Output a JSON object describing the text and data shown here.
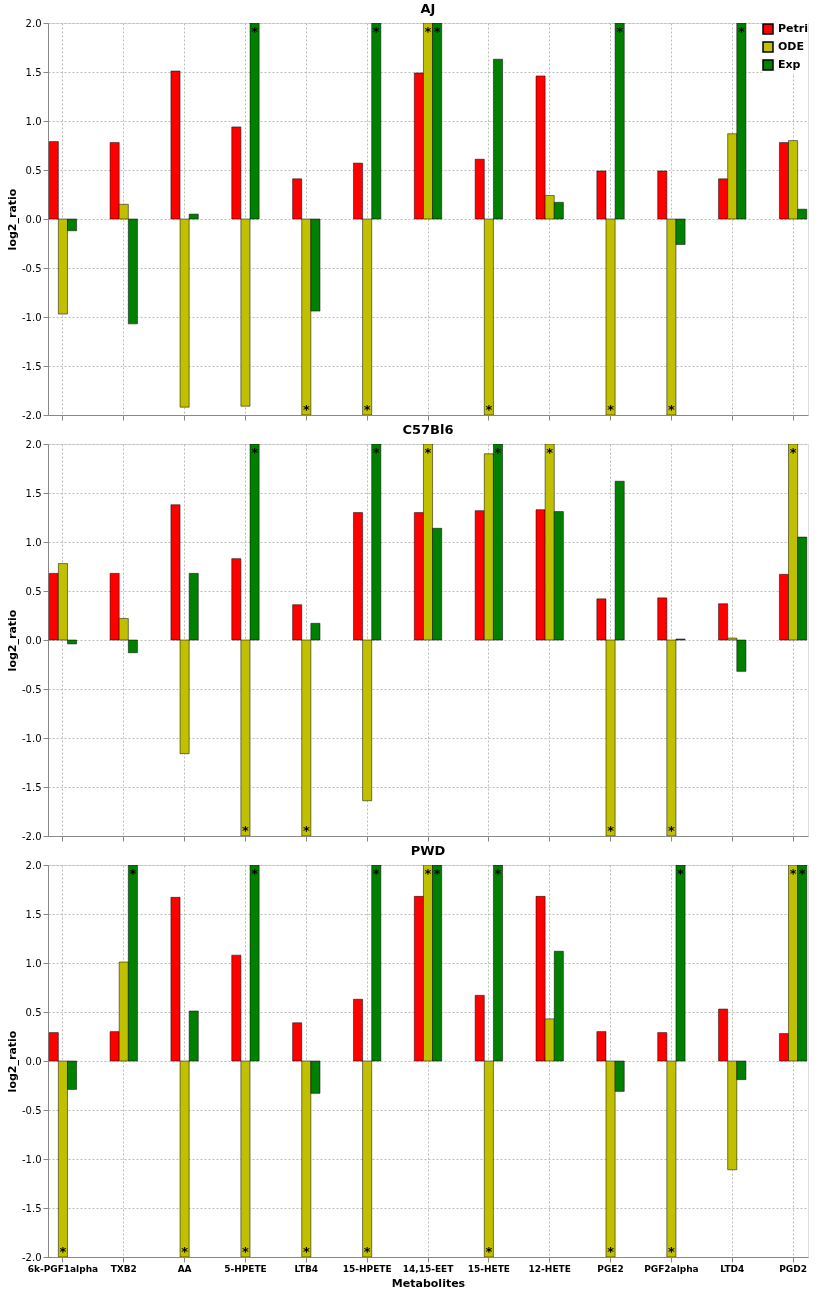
{
  "chart_data": [
    {
      "type": "bar",
      "title": "AJ",
      "ylabel": "log2_ratio",
      "categories": [
        "6k-PGF1alpha",
        "TXB2",
        "AA",
        "5-HPETE",
        "LTB4",
        "15-HPETE",
        "14,15-EET",
        "15-HETE",
        "12-HETE",
        "PGE2",
        "PGF2alpha",
        "LTD4",
        "PGD2"
      ],
      "series": [
        {
          "name": "Petri",
          "color": "#ff0000",
          "values": [
            0.79,
            0.78,
            1.51,
            0.94,
            0.41,
            0.57,
            1.49,
            0.61,
            1.46,
            0.49,
            0.49,
            0.41,
            0.78
          ]
        },
        {
          "name": "ODE",
          "color": "#c0c000",
          "values": [
            -0.97,
            0.15,
            -1.92,
            -1.91,
            -2.0,
            -2.0,
            2.0,
            -2.0,
            0.24,
            -2.0,
            -2.0,
            0.87,
            0.8
          ]
        },
        {
          "name": "Exp",
          "color": "#008000",
          "values": [
            -0.12,
            -1.07,
            0.05,
            2.0,
            -0.94,
            2.0,
            2.0,
            1.63,
            0.17,
            2.0,
            -0.26,
            2.0,
            0.1
          ]
        }
      ],
      "annotations": [
        {
          "text": "*",
          "x": "5-HPETE",
          "y": 2.0
        },
        {
          "text": "*",
          "x": "LTB4",
          "y": -2.0
        },
        {
          "text": "*",
          "x": "15-HPETE",
          "y": -2.0
        },
        {
          "text": "*",
          "x": "15-HPETE",
          "y": 2.0
        },
        {
          "text": "*",
          "x": "14,15-EET",
          "y": 2.0
        },
        {
          "text": "*",
          "x": "14,15-EET",
          "y": 2.0
        },
        {
          "text": "*",
          "x": "15-HETE",
          "y": -2.0
        },
        {
          "text": "*",
          "x": "PGE2",
          "y": -2.0
        },
        {
          "text": "*",
          "x": "PGE2",
          "y": 2.0
        },
        {
          "text": "*",
          "x": "PGF2alpha",
          "y": -2.0
        },
        {
          "text": "*",
          "x": "LTD4",
          "y": 2.0
        }
      ],
      "ylim": [
        -2.0,
        2.0
      ],
      "yticks": [
        {
          "value": -2,
          "label": "-2.0"
        },
        {
          "value": -1.5,
          "label": "-1.5"
        },
        {
          "value": -1,
          "label": "-1.0"
        },
        {
          "value": -0.5,
          "label": "-0.5"
        },
        {
          "value": 0,
          "label": "0.0"
        },
        {
          "value": 0.5,
          "label": "0.5"
        },
        {
          "value": 1,
          "label": "1.0"
        },
        {
          "value": 1.5,
          "label": "1.5"
        },
        {
          "value": 2,
          "label": "2.0"
        }
      ],
      "grid": true,
      "legend": "top right",
      "tick_labels": "y"
    },
    {
      "type": "bar",
      "title": "C57Bl6",
      "ylabel": "log2_ratio",
      "categories": [
        "6k-PGF1alpha",
        "TXB2",
        "AA",
        "5-HPETE",
        "LTB4",
        "15-HPETE",
        "14,15-EET",
        "15-HETE",
        "12-HETE",
        "PGE2",
        "PGF2alpha",
        "LTD4",
        "PGD2"
      ],
      "series": [
        {
          "color": "#ff0000",
          "values": [
            0.68,
            0.68,
            1.38,
            0.83,
            0.36,
            1.3,
            1.3,
            1.32,
            1.33,
            0.42,
            0.43,
            0.37,
            0.67
          ]
        },
        {
          "color": "#c0c000",
          "values": [
            0.78,
            0.22,
            -1.16,
            -2.0,
            -2.0,
            -1.64,
            2.0,
            1.9,
            2.0,
            -2.0,
            -2.0,
            0.02,
            2.0
          ]
        },
        {
          "color": "#008000",
          "values": [
            -0.04,
            -0.13,
            0.68,
            2.0,
            0.17,
            2.0,
            1.14,
            2.0,
            1.31,
            1.62,
            0.01,
            -0.32,
            1.05
          ]
        }
      ],
      "annotations": [
        {
          "text": "*",
          "x": "5-HPETE",
          "y": -2.0
        },
        {
          "text": "*",
          "x": "5-HPETE",
          "y": 2.0
        },
        {
          "text": "*",
          "x": "LTB4",
          "y": -2.0
        },
        {
          "text": "*",
          "x": "15-HPETE",
          "y": 2.0
        },
        {
          "text": "*",
          "x": "14,15-EET",
          "y": 2.0
        },
        {
          "text": "*",
          "x": "15-HETE",
          "y": 2.0
        },
        {
          "text": "*",
          "x": "12-HETE",
          "y": 2.0
        },
        {
          "text": "*",
          "x": "PGE2",
          "y": -2.0
        },
        {
          "text": "*",
          "x": "PGF2alpha",
          "y": -2.0
        },
        {
          "text": "*",
          "x": "PGD2",
          "y": 2.0
        }
      ],
      "ylim": [
        -2.0,
        2.0
      ],
      "yticks": [
        {
          "value": -2,
          "label": "-2.0"
        },
        {
          "value": -1.5,
          "label": "-1.5"
        },
        {
          "value": -1,
          "label": "-1.0"
        },
        {
          "value": -0.5,
          "label": "-0.5"
        },
        {
          "value": 0,
          "label": "0.0"
        },
        {
          "value": 0.5,
          "label": "0.5"
        },
        {
          "value": 1,
          "label": "1.0"
        },
        {
          "value": 1.5,
          "label": "1.5"
        },
        {
          "value": 2,
          "label": "2.0"
        }
      ],
      "grid": true,
      "tick_labels": "y"
    },
    {
      "type": "bar",
      "title": "PWD",
      "xlabel": "Metabolites",
      "ylabel": "log2_ratio",
      "categories": [
        "6k-PGF1alpha",
        "TXB2",
        "AA",
        "5-HPETE",
        "LTB4",
        "15-HPETE",
        "14,15-EET",
        "15-HETE",
        "12-HETE",
        "PGE2",
        "PGF2alpha",
        "LTD4",
        "PGD2"
      ],
      "series": [
        {
          "color": "#ff0000",
          "values": [
            0.29,
            0.3,
            1.67,
            1.08,
            0.39,
            0.63,
            1.68,
            0.67,
            1.68,
            0.3,
            0.29,
            0.53,
            0.28
          ]
        },
        {
          "color": "#c0c000",
          "values": [
            -2.0,
            1.01,
            -2.0,
            -2.0,
            -2.0,
            -2.0,
            2.0,
            -2.0,
            0.43,
            -2.0,
            -2.0,
            -1.11,
            2.0
          ]
        },
        {
          "color": "#008000",
          "values": [
            -0.29,
            2.0,
            0.51,
            2.0,
            -0.33,
            2.0,
            2.0,
            2.0,
            1.12,
            -0.31,
            2.0,
            -0.19,
            2.0
          ]
        }
      ],
      "annotations": [
        {
          "text": "*",
          "x": "6k-PGF1alpha",
          "y": -2.0
        },
        {
          "text": "*",
          "x": "TXB2",
          "y": 2.0
        },
        {
          "text": "*",
          "x": "AA",
          "y": -2.0
        },
        {
          "text": "*",
          "x": "5-HPETE",
          "y": -2.0
        },
        {
          "text": "*",
          "x": "5-HPETE",
          "y": 2.0
        },
        {
          "text": "*",
          "x": "LTB4",
          "y": -2.0
        },
        {
          "text": "*",
          "x": "15-HPETE",
          "y": -2.0
        },
        {
          "text": "*",
          "x": "15-HPETE",
          "y": 2.0
        },
        {
          "text": "*",
          "x": "14,15-EET",
          "y": 2.0
        },
        {
          "text": "*",
          "x": "14,15-EET",
          "y": 2.0
        },
        {
          "text": "*",
          "x": "15-HETE",
          "y": -2.0
        },
        {
          "text": "*",
          "x": "15-HETE",
          "y": 2.0
        },
        {
          "text": "*",
          "x": "PGE2",
          "y": -2.0
        },
        {
          "text": "*",
          "x": "PGF2alpha",
          "y": -2.0
        },
        {
          "text": "*",
          "x": "PGF2alpha",
          "y": 2.0
        },
        {
          "text": "*",
          "x": "PGD2",
          "y": 2.0
        },
        {
          "text": "*",
          "x": "PGD2",
          "y": 2.0
        }
      ],
      "ylim": [
        -2.0,
        2.0
      ],
      "yticks": [
        {
          "value": -2,
          "label": "-2.0"
        },
        {
          "value": -1.5,
          "label": "-1.5"
        },
        {
          "value": -1,
          "label": "-1.0"
        },
        {
          "value": -0.5,
          "label": "-0.5"
        },
        {
          "value": 0,
          "label": "0.0"
        },
        {
          "value": 0.5,
          "label": "0.5"
        },
        {
          "value": 1,
          "label": "1.0"
        },
        {
          "value": 1.5,
          "label": "1.5"
        },
        {
          "value": 2,
          "label": "2.0"
        }
      ],
      "grid": true
    }
  ]
}
